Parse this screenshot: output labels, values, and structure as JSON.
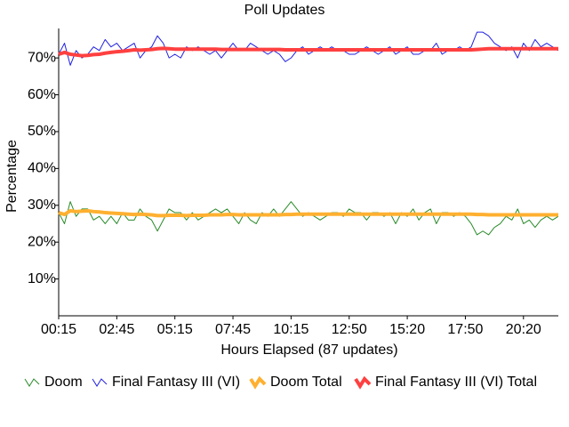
{
  "chart_data": {
    "type": "line",
    "title": "Poll Updates",
    "x_label": "Hours Elapsed (87 updates)",
    "y_label": "Percentage",
    "categories": [
      "00:15",
      null,
      null,
      null,
      null,
      null,
      null,
      null,
      null,
      null,
      "02:45",
      null,
      null,
      null,
      null,
      null,
      null,
      null,
      null,
      null,
      "05:15",
      null,
      null,
      null,
      null,
      null,
      null,
      null,
      null,
      null,
      "07:45",
      null,
      null,
      null,
      null,
      null,
      null,
      null,
      null,
      null,
      "10:15",
      null,
      null,
      null,
      null,
      null,
      null,
      null,
      null,
      null,
      "12:50",
      null,
      null,
      null,
      null,
      null,
      null,
      null,
      null,
      null,
      "15:20",
      null,
      null,
      null,
      null,
      null,
      null,
      null,
      null,
      null,
      "17:50",
      null,
      null,
      null,
      null,
      null,
      null,
      null,
      null,
      null,
      "20:20",
      null,
      null,
      null,
      null,
      null,
      null
    ],
    "ylim": [
      0,
      78
    ],
    "yticks": [
      {
        "value": 10,
        "label": "10%"
      },
      {
        "value": 20,
        "label": "20%"
      },
      {
        "value": 30,
        "label": "30%"
      },
      {
        "value": 40,
        "label": "40%"
      },
      {
        "value": 50,
        "label": "50%"
      },
      {
        "value": 60,
        "label": "60%"
      },
      {
        "value": 70,
        "label": "70%"
      }
    ],
    "series": [
      {
        "name": "Doom",
        "color": "#2a8a2a",
        "width": 1,
        "values": [
          28,
          25,
          31,
          27,
          29,
          29,
          26,
          27,
          25,
          27,
          25,
          28,
          26,
          26,
          29,
          27,
          26,
          23,
          26,
          29,
          28,
          28,
          26,
          28,
          26,
          27,
          28,
          29,
          28,
          29,
          27,
          25,
          28,
          26,
          25,
          28,
          27,
          29,
          27,
          29,
          31,
          29,
          27,
          28,
          27,
          26,
          27,
          28,
          28,
          27,
          29,
          28,
          28,
          26,
          28,
          28,
          27,
          28,
          25,
          28,
          27,
          29,
          26,
          28,
          29,
          25,
          28,
          28,
          27,
          28,
          27,
          25,
          22,
          23,
          22,
          24,
          25,
          27,
          26,
          29,
          25,
          26,
          24,
          26,
          27,
          26,
          27
        ]
      },
      {
        "name": "Final Fantasy III (VI)",
        "color": "#2020e0",
        "width": 1,
        "values": [
          71,
          74,
          68,
          72,
          70,
          71,
          73,
          72,
          75,
          73,
          74,
          72,
          73,
          74,
          70,
          72,
          73,
          76,
          74,
          70,
          71,
          70,
          73,
          72,
          73,
          72,
          71,
          72,
          70,
          72,
          74,
          72,
          72,
          74,
          73,
          72,
          71,
          72,
          71,
          69,
          70,
          72,
          73,
          71,
          72,
          73,
          72,
          73,
          72,
          72,
          71,
          71,
          72,
          73,
          72,
          71,
          72,
          73,
          71,
          72,
          73,
          71,
          71,
          72,
          72,
          74,
          71,
          72,
          72,
          73,
          72,
          73,
          77,
          77,
          76,
          74,
          73,
          72,
          73,
          70,
          74,
          72,
          75,
          73,
          74,
          73,
          72
        ]
      },
      {
        "name": "Doom Total",
        "color": "#ffb030",
        "width": 4,
        "values": [
          28,
          27.5,
          28.5,
          28.3,
          28.4,
          28.5,
          28.3,
          28.2,
          28,
          27.9,
          27.8,
          27.7,
          27.6,
          27.5,
          27.6,
          27.5,
          27.4,
          27.2,
          27.2,
          27.3,
          27.3,
          27.3,
          27.2,
          27.3,
          27.3,
          27.3,
          27.4,
          27.4,
          27.4,
          27.5,
          27.5,
          27.4,
          27.4,
          27.4,
          27.4,
          27.4,
          27.4,
          27.4,
          27.4,
          27.5,
          27.5,
          27.6,
          27.6,
          27.6,
          27.6,
          27.6,
          27.6,
          27.6,
          27.6,
          27.6,
          27.6,
          27.6,
          27.6,
          27.6,
          27.6,
          27.6,
          27.6,
          27.6,
          27.6,
          27.6,
          27.6,
          27.6,
          27.6,
          27.6,
          27.6,
          27.6,
          27.6,
          27.6,
          27.6,
          27.6,
          27.6,
          27.6,
          27.5,
          27.5,
          27.4,
          27.4,
          27.4,
          27.4,
          27.4,
          27.4,
          27.4,
          27.4,
          27.4,
          27.4,
          27.4,
          27.4,
          27.4
        ]
      },
      {
        "name": "Final Fantasy III (VI) Total",
        "color": "#ff4040",
        "width": 4,
        "values": [
          71,
          71.5,
          71,
          70.8,
          70.6,
          70.7,
          70.9,
          71,
          71.3,
          71.5,
          71.7,
          71.8,
          72,
          72.2,
          72.1,
          72.2,
          72.3,
          72.5,
          72.6,
          72.5,
          72.4,
          72.4,
          72.4,
          72.4,
          72.4,
          72.4,
          72.4,
          72.4,
          72.3,
          72.3,
          72.3,
          72.3,
          72.3,
          72.3,
          72.3,
          72.3,
          72.3,
          72.3,
          72.3,
          72.2,
          72.2,
          72.2,
          72.2,
          72.2,
          72.2,
          72.2,
          72.2,
          72.2,
          72.2,
          72.2,
          72.2,
          72.2,
          72.2,
          72.2,
          72.2,
          72.2,
          72.2,
          72.2,
          72.2,
          72.2,
          72.2,
          72.2,
          72.2,
          72.2,
          72.2,
          72.2,
          72.2,
          72.2,
          72.2,
          72.2,
          72.2,
          72.2,
          72.3,
          72.4,
          72.5,
          72.5,
          72.5,
          72.5,
          72.5,
          72.5,
          72.5,
          72.5,
          72.5,
          72.5,
          72.5,
          72.5,
          72.5
        ]
      }
    ]
  }
}
